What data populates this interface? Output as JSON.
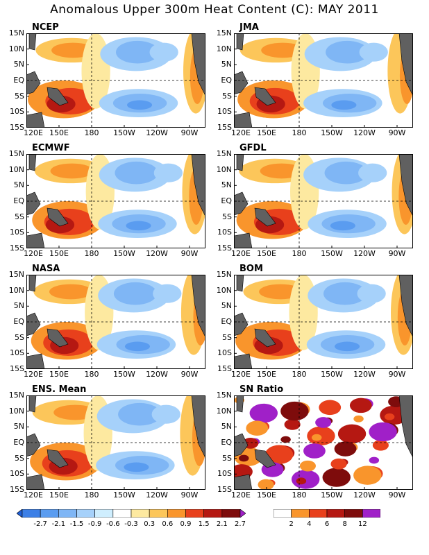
{
  "title": "Anomalous Upper 300m Heat Content (C): MAY 2011",
  "y_ticks": [
    "15N",
    "10N",
    "5N",
    "EQ",
    "5S",
    "10S",
    "15S"
  ],
  "x_ticks": [
    "120E",
    "150E",
    "180",
    "150W",
    "120W",
    "90W"
  ],
  "panels": [
    {
      "id": "ncep",
      "label": "NCEP"
    },
    {
      "id": "jma",
      "label": "JMA"
    },
    {
      "id": "ecmwf",
      "label": "ECMWF"
    },
    {
      "id": "gfdl",
      "label": "GFDL"
    },
    {
      "id": "nasa",
      "label": "NASA"
    },
    {
      "id": "bom",
      "label": "BOM"
    },
    {
      "id": "ens",
      "label": "ENS. Mean"
    },
    {
      "id": "sn",
      "label": "SN Ratio"
    }
  ],
  "colorbar_left": {
    "labels": [
      "-2.7",
      "-2.1",
      "-1.5",
      "-0.9",
      "-0.6",
      "-0.3",
      "0.3",
      "0.6",
      "0.9",
      "1.5",
      "2.1",
      "2.7"
    ],
    "colors": [
      "#1f5fd6",
      "#3c7fe6",
      "#5a9cf0",
      "#7fb6f5",
      "#a6d1fa",
      "#cfeefe",
      "#ffffff",
      "#fde9a0",
      "#fcc65a",
      "#f9952c",
      "#e8401c",
      "#b51812",
      "#7e0c0c",
      "#a020c8"
    ]
  },
  "colorbar_right": {
    "labels": [
      "2",
      "4",
      "6",
      "8",
      "12"
    ],
    "colors": [
      "#ffffff",
      "#f9952c",
      "#e8401c",
      "#b51812",
      "#7e0c0c",
      "#a020c8"
    ]
  }
}
